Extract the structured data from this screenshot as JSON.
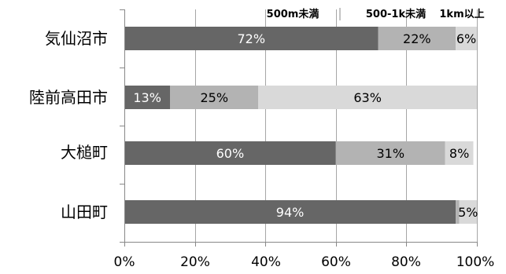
{
  "chart_data": {
    "type": "bar",
    "orientation": "horizontal",
    "stacked": "percent",
    "categories": [
      "気仙沼市",
      "陸前高田市",
      "大槌町",
      "山田町"
    ],
    "series": [
      {
        "name": "500m未満",
        "values": [
          72,
          13,
          60,
          94
        ],
        "labels": [
          "72%",
          "13%",
          "60%",
          "94%"
        ],
        "color": "#666666",
        "label_color": "#ffffff"
      },
      {
        "name": "500-1k未満",
        "values": [
          22,
          25,
          31,
          1
        ],
        "labels": [
          "22%",
          "25%",
          "31%",
          ""
        ],
        "color": "#b3b3b3",
        "label_color": "#000000"
      },
      {
        "name": "1km以上",
        "values": [
          6,
          63,
          8,
          5
        ],
        "labels": [
          "6%",
          "63%",
          "8%",
          "5%"
        ],
        "color": "#d9d9d9",
        "label_color": "#000000"
      }
    ],
    "xlim": [
      0,
      100
    ],
    "x_ticks": [
      "0%",
      "20%",
      "40%",
      "60%",
      "80%",
      "100%"
    ],
    "grid": "vertical",
    "legend": "top-right"
  }
}
